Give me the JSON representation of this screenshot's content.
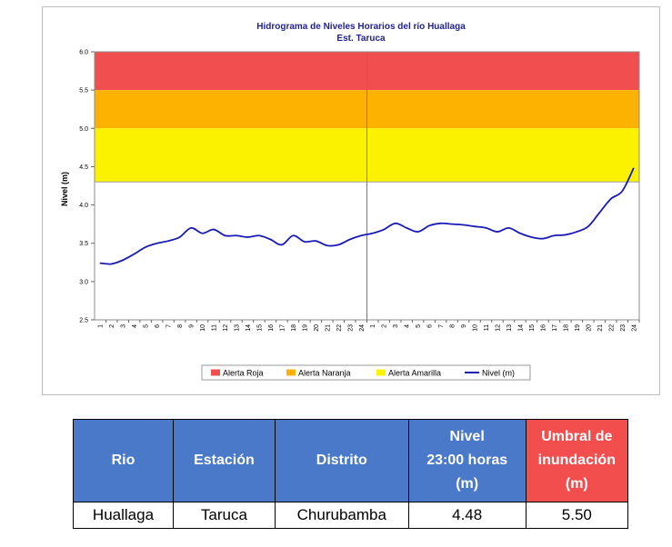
{
  "chart_data": {
    "type": "line",
    "title": "Hidrograma de Niveles Horarios del río Huallaga",
    "subtitle": "Est. Taruca",
    "ylabel": "Nivel (m)",
    "xlabel": "",
    "ylim": [
      2.5,
      6.0
    ],
    "yticks": [
      "2.5",
      "3.0",
      "3.5",
      "4.0",
      "4.5",
      "5.0",
      "5.5",
      "6.0"
    ],
    "x_tick_labels": [
      "1",
      "2",
      "3",
      "4",
      "5",
      "6",
      "7",
      "8",
      "9",
      "10",
      "11",
      "12",
      "13",
      "14",
      "15",
      "16",
      "17",
      "18",
      "19",
      "20",
      "21",
      "22",
      "23",
      "24",
      "1",
      "2",
      "3",
      "4",
      "5",
      "6",
      "7",
      "8",
      "9",
      "10",
      "11",
      "12",
      "13",
      "14",
      "15",
      "16",
      "17",
      "18",
      "19",
      "20",
      "21",
      "22",
      "23",
      "24"
    ],
    "bands": [
      {
        "name": "Alerta Roja",
        "from": 5.5,
        "to": 6.0,
        "color": "#f14f4f"
      },
      {
        "name": "Alerta Naranja",
        "from": 5.0,
        "to": 5.5,
        "color": "#fdb201"
      },
      {
        "name": "Alerta Amarilla",
        "from": 4.3,
        "to": 5.0,
        "color": "#fbf200"
      }
    ],
    "series": [
      {
        "name": "Nivel (m)",
        "color": "#1a1ab4",
        "values": [
          3.24,
          3.23,
          3.28,
          3.36,
          3.45,
          3.5,
          3.53,
          3.58,
          3.7,
          3.63,
          3.68,
          3.6,
          3.6,
          3.58,
          3.6,
          3.55,
          3.48,
          3.6,
          3.52,
          3.53,
          3.47,
          3.48,
          3.55,
          3.6,
          3.63,
          3.68,
          3.76,
          3.7,
          3.65,
          3.73,
          3.76,
          3.75,
          3.74,
          3.72,
          3.7,
          3.65,
          3.7,
          3.63,
          3.58,
          3.56,
          3.6,
          3.61,
          3.65,
          3.72,
          3.9,
          4.08,
          4.18,
          4.48
        ]
      }
    ],
    "divider_after_index": 23,
    "grid": false,
    "legend_position": "bottom"
  },
  "table": {
    "headers": {
      "rio": "Rio",
      "estacion": "Estación",
      "distrito": "Distrito",
      "nivel": [
        "Nivel",
        "23:00 horas",
        "(m)"
      ],
      "umbral": [
        "Umbral de",
        "inundación",
        "(m)"
      ]
    },
    "row": {
      "rio": "Huallaga",
      "estacion": "Taruca",
      "distrito": "Churubamba",
      "nivel": "4.48",
      "umbral": "5.50"
    }
  }
}
